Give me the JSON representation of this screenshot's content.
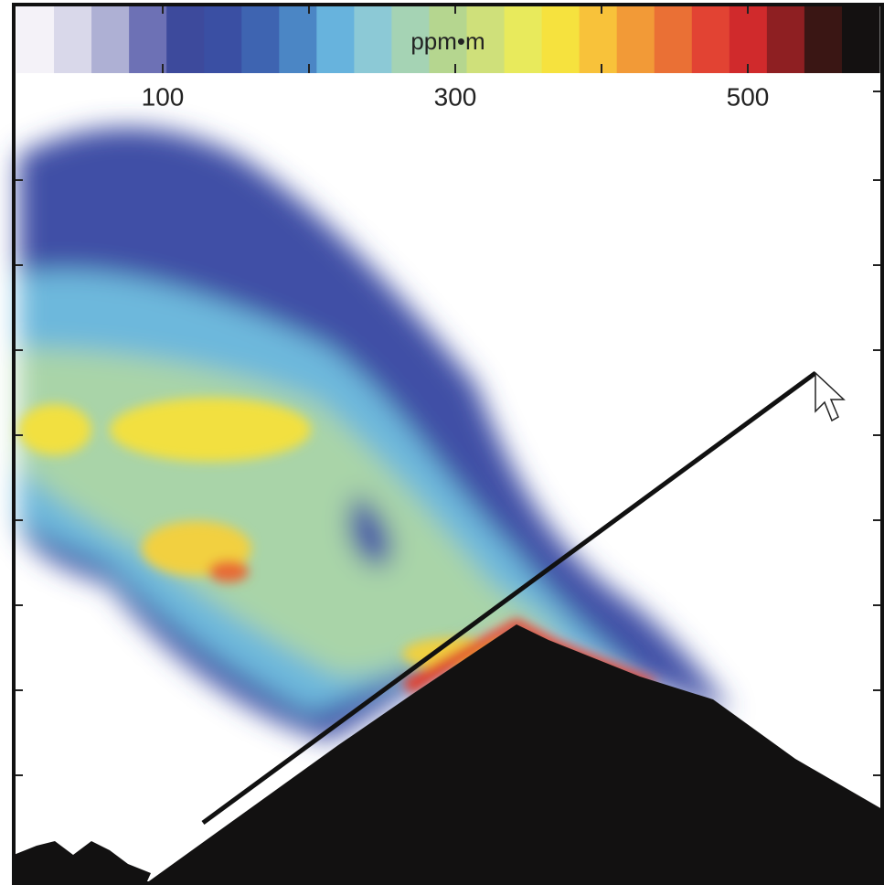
{
  "chart_data": {
    "type": "colorbar",
    "label": "ppm•m",
    "xlim": [
      0,
      590
    ],
    "xticks": [
      100,
      300,
      500
    ],
    "minor_ticks": [
      200,
      400
    ],
    "colormap": [
      "#f4f2f8",
      "#d9d8ea",
      "#aeb0d4",
      "#6d71b5",
      "#3d4a9c",
      "#3a4fa3",
      "#3e64b1",
      "#4b86c5",
      "#67b3dd",
      "#8cc9d6",
      "#a5d3b4",
      "#b5d68f",
      "#cfe07a",
      "#e8ea5c",
      "#f6e23e",
      "#f8c23a",
      "#f29a37",
      "#ea7035",
      "#e24333",
      "#d02a2c",
      "#8e1f22",
      "#3a1614",
      "#141111"
    ]
  }
}
